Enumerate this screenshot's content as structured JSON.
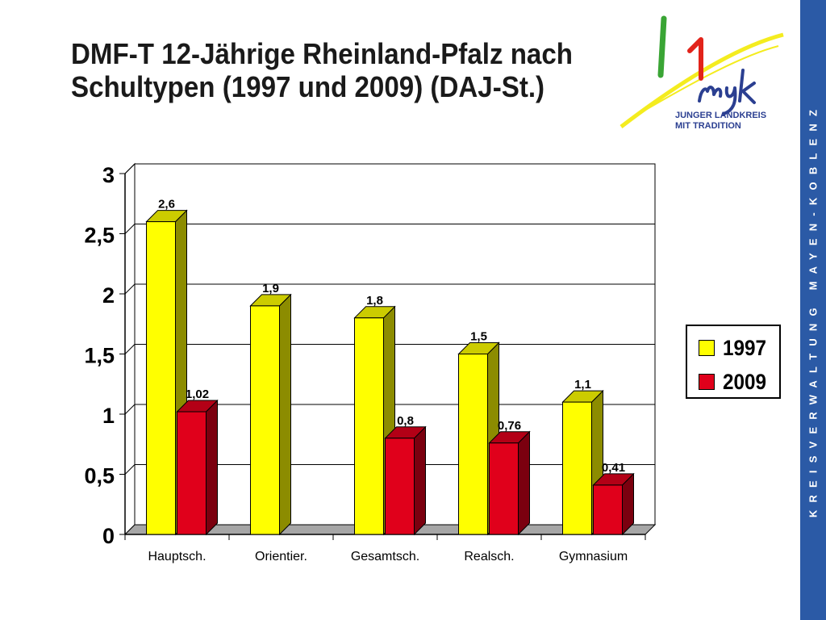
{
  "slide": {
    "title_line1": "DMF-T 12-Jährige Rheinland-Pfalz nach",
    "title_line2": "Schultypen (1997 und 2009) (DAJ-St.)",
    "sidebar_text": "KREISVERWALTUNG MAYEN-KOBLENZ",
    "logo": {
      "icon": "myk-logo",
      "line1": "JUNGER LANDKREIS",
      "line2": "MIT TRADITION"
    }
  },
  "chart_data": {
    "type": "bar",
    "title": "",
    "xlabel": "",
    "ylabel": "",
    "categories": [
      "Hauptsch.",
      "Orientier.",
      "Gesamtsch.",
      "Realsch.",
      "Gymnasium"
    ],
    "series": [
      {
        "name": "1997",
        "color": "#ffff00",
        "values": [
          2.6,
          1.9,
          1.8,
          1.5,
          1.1
        ],
        "labels": [
          "2,6",
          "1,9",
          "1,8",
          "1,5",
          "1,1"
        ]
      },
      {
        "name": "2009",
        "color": "#e0001b",
        "values": [
          1.02,
          null,
          0.8,
          0.76,
          0.41
        ],
        "labels": [
          "1,02",
          "",
          "0,8",
          "0,76",
          "0,41"
        ]
      }
    ],
    "ylim": [
      0,
      3
    ],
    "yticks": [
      0,
      0.5,
      1,
      1.5,
      2,
      2.5,
      3
    ],
    "ytick_labels": [
      "0",
      "0,5",
      "1",
      "1,5",
      "2",
      "2,5",
      "3"
    ],
    "grid": true,
    "style": "3d-bar",
    "legend_position": "right"
  }
}
